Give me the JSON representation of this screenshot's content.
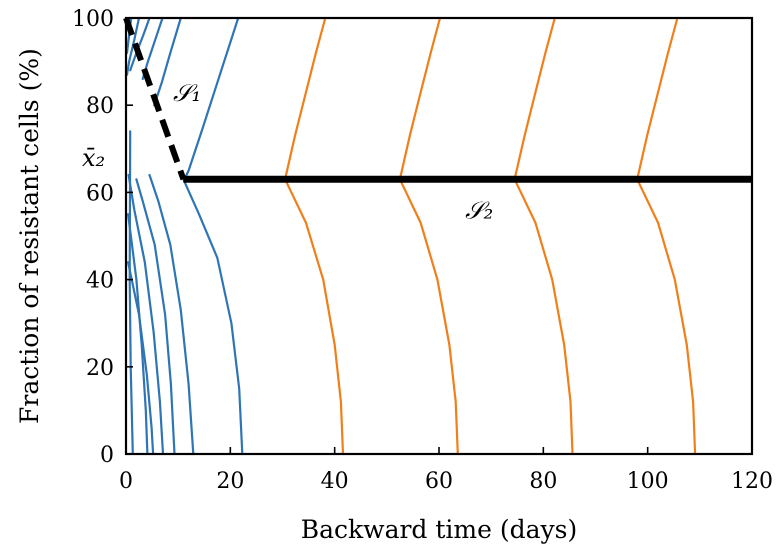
{
  "chart_data": {
    "type": "line",
    "title": "",
    "xlabel": "Backward time (days)",
    "ylabel": "Fraction of resistant cells (%)",
    "xlim": [
      0,
      120
    ],
    "ylim": [
      0,
      100
    ],
    "xticks": [
      "0",
      "20",
      "40",
      "60",
      "80",
      "100",
      "120"
    ],
    "yticks": [
      "0",
      "20",
      "40",
      "60",
      "80",
      "100"
    ],
    "grid": false,
    "legend": "none",
    "colors": {
      "blue": "#2f75b6",
      "orange": "#f07f1a",
      "black": "#000000"
    },
    "annotations": [
      {
        "text": "𝒮₁",
        "x": 9,
        "y": 81
      },
      {
        "text": "𝒮₂",
        "x": 65,
        "y": 54
      },
      {
        "text": "x̄₂",
        "x": -4,
        "y": 66
      }
    ],
    "series": [
      {
        "color": "blue",
        "points": [
          [
            1,
            100
          ],
          [
            0.6,
            96
          ],
          [
            0.2,
            92
          ]
        ]
      },
      {
        "color": "blue",
        "points": [
          [
            2.5,
            100
          ],
          [
            1.6,
            95
          ],
          [
            0.6,
            90
          ],
          [
            0.2,
            87
          ]
        ]
      },
      {
        "color": "blue",
        "points": [
          [
            4.5,
            100
          ],
          [
            3.3,
            96
          ],
          [
            2.0,
            92
          ],
          [
            0.8,
            88
          ]
        ]
      },
      {
        "color": "blue",
        "points": [
          [
            7,
            100
          ],
          [
            5.6,
            95
          ],
          [
            4.2,
            90
          ],
          [
            3.2,
            86
          ]
        ]
      },
      {
        "color": "blue",
        "points": [
          [
            10.5,
            100
          ],
          [
            8.5,
            92
          ],
          [
            6.8,
            85
          ],
          [
            5.4,
            80
          ]
        ]
      },
      {
        "color": "blue",
        "points": [
          [
            21.5,
            100
          ],
          [
            18,
            87
          ],
          [
            14.5,
            74
          ],
          [
            12,
            65
          ],
          [
            11.2,
            63
          ]
        ]
      },
      {
        "color": "blue",
        "points": [
          [
            0.8,
            74
          ],
          [
            0.7,
            40
          ],
          [
            0.9,
            20
          ],
          [
            1.3,
            0
          ]
        ]
      },
      {
        "color": "blue",
        "points": [
          [
            0.4,
            55
          ],
          [
            2.0,
            40
          ],
          [
            3.0,
            25
          ],
          [
            3.8,
            10
          ],
          [
            4.1,
            0
          ]
        ]
      },
      {
        "color": "blue",
        "points": [
          [
            0.4,
            44
          ],
          [
            2.5,
            32
          ],
          [
            4.0,
            18
          ],
          [
            4.9,
            6
          ],
          [
            5.2,
            0
          ]
        ]
      },
      {
        "color": "blue",
        "points": [
          [
            0.5,
            64
          ],
          [
            1.6,
            56
          ],
          [
            3.6,
            44
          ],
          [
            5.3,
            28
          ],
          [
            6.5,
            12
          ],
          [
            7.1,
            0
          ]
        ]
      },
      {
        "color": "blue",
        "points": [
          [
            2.0,
            63
          ],
          [
            3.2,
            58
          ],
          [
            5.5,
            48
          ],
          [
            7.5,
            32
          ],
          [
            8.6,
            16
          ],
          [
            9.3,
            0
          ]
        ]
      },
      {
        "color": "blue",
        "points": [
          [
            4.5,
            64
          ],
          [
            6.2,
            58
          ],
          [
            8.5,
            48
          ],
          [
            10.5,
            33
          ],
          [
            12,
            16
          ],
          [
            12.9,
            0
          ]
        ]
      },
      {
        "color": "blue",
        "points": [
          [
            11,
            63
          ],
          [
            14,
            55
          ],
          [
            17.5,
            45
          ],
          [
            20.2,
            30
          ],
          [
            21.7,
            15
          ],
          [
            22.3,
            0
          ]
        ]
      },
      {
        "color": "orange",
        "points": [
          [
            30.5,
            63
          ],
          [
            34.5,
            53
          ],
          [
            37.8,
            40
          ],
          [
            40,
            25
          ],
          [
            41.2,
            12
          ],
          [
            41.6,
            0
          ]
        ]
      },
      {
        "color": "orange",
        "points": [
          [
            52.5,
            63
          ],
          [
            56.5,
            53
          ],
          [
            59.7,
            40
          ],
          [
            62,
            25
          ],
          [
            63.2,
            12
          ],
          [
            63.6,
            0
          ]
        ]
      },
      {
        "color": "orange",
        "points": [
          [
            74.5,
            63
          ],
          [
            78.5,
            53
          ],
          [
            81.7,
            40
          ],
          [
            84,
            25
          ],
          [
            85.2,
            12
          ],
          [
            85.6,
            0
          ]
        ]
      },
      {
        "color": "orange",
        "points": [
          [
            98,
            63
          ],
          [
            102,
            53
          ],
          [
            105.2,
            40
          ],
          [
            107.5,
            25
          ],
          [
            108.7,
            12
          ],
          [
            109.1,
            0
          ]
        ]
      },
      {
        "color": "orange",
        "points": [
          [
            30.5,
            63
          ],
          [
            32.4,
            73
          ],
          [
            34.5,
            83
          ],
          [
            36.4,
            92
          ],
          [
            38.2,
            100
          ]
        ]
      },
      {
        "color": "orange",
        "points": [
          [
            52.5,
            63
          ],
          [
            54.4,
            73
          ],
          [
            56.5,
            83
          ],
          [
            58.4,
            92
          ],
          [
            60.2,
            100
          ]
        ]
      },
      {
        "color": "orange",
        "points": [
          [
            74.5,
            63
          ],
          [
            76.4,
            73
          ],
          [
            78.5,
            83
          ],
          [
            80.4,
            92
          ],
          [
            82.2,
            100
          ]
        ]
      },
      {
        "color": "orange",
        "points": [
          [
            98,
            63
          ],
          [
            99.9,
            73
          ],
          [
            102,
            83
          ],
          [
            103.9,
            92
          ],
          [
            105.7,
            100
          ]
        ]
      }
    ],
    "boundaries": [
      {
        "name": "S1",
        "style": "dashed",
        "points": [
          [
            0,
            100
          ],
          [
            11,
            63
          ]
        ]
      },
      {
        "name": "S2",
        "style": "solid",
        "points": [
          [
            11,
            63
          ],
          [
            120,
            63
          ]
        ]
      }
    ]
  }
}
